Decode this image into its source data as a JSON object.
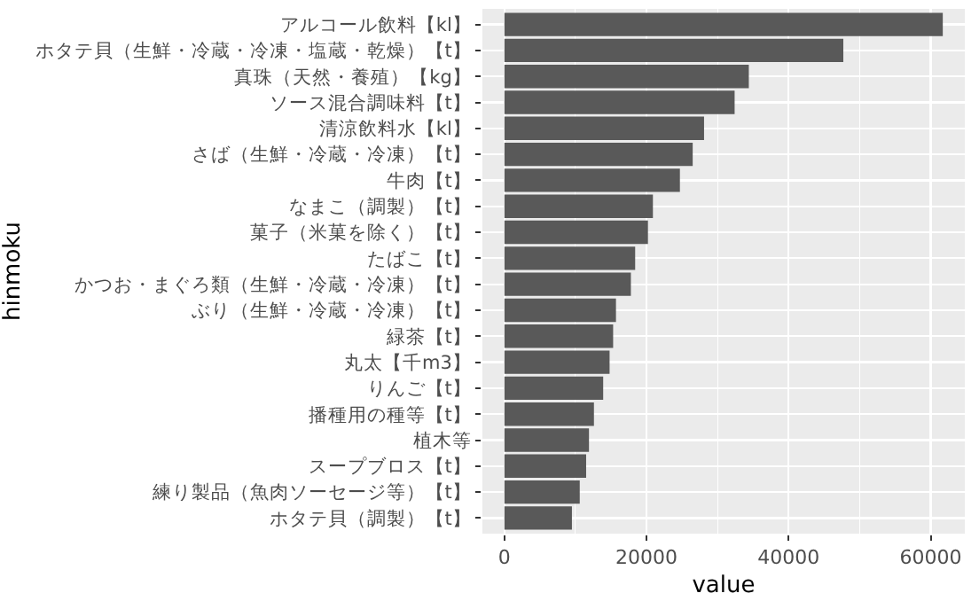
{
  "chart_data": {
    "type": "bar",
    "orientation": "horizontal",
    "xlabel": "value",
    "ylabel": "hinmoku",
    "categories": [
      "アルコール飲料【kl】",
      "ホタテ貝（生鮮・冷蔵・冷凍・塩蔵・乾燥）【t】",
      "真珠（天然・養殖）【kg】",
      "ソース混合調味料【t】",
      "清涼飲料水【kl】",
      "さば（生鮮・冷蔵・冷凍）【t】",
      "牛肉【t】",
      "なまこ（調製）【t】",
      "菓子（米菓を除く）【t】",
      "たばこ【t】",
      "かつお・まぐろ類（生鮮・冷蔵・冷凍）【t】",
      "ぶり（生鮮・冷蔵・冷凍）【t】",
      "緑茶【t】",
      "丸太【千m3】",
      "りんご【t】",
      "播種用の種等【t】",
      "植木等",
      "スープブロス【t】",
      "練り製品（魚肉ソーセージ等）【t】",
      "ホタテ貝（調製）【t】"
    ],
    "values": [
      61700,
      47700,
      34400,
      32400,
      28100,
      26500,
      24700,
      20900,
      20200,
      18400,
      17800,
      15700,
      15300,
      14800,
      13900,
      12600,
      11900,
      11500,
      10600,
      9500
    ],
    "color": "#595959",
    "xlim": [
      -3100,
      64800
    ],
    "xticks": [
      0,
      {
        "value": 10000,
        "label": null
      },
      20000,
      {
        "value": 30000,
        "label": null
      },
      40000,
      {
        "value": 50000,
        "label": null
      },
      60000
    ],
    "grid": true
  }
}
